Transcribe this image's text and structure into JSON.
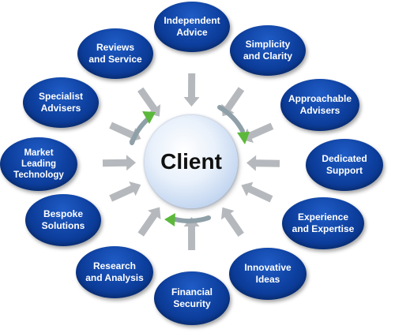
{
  "center": {
    "label": "Client"
  },
  "nodes": [
    {
      "id": "independent-advice",
      "label": "Independent\nAdvice"
    },
    {
      "id": "simplicity-and-clarity",
      "label": "Simplicity\nand Clarity"
    },
    {
      "id": "approachable-advisers",
      "label": "Approachable\nAdvisers"
    },
    {
      "id": "dedicated-support",
      "label": "Dedicated\nSupport"
    },
    {
      "id": "experience-and-expertise",
      "label": "Experience\nand Expertise"
    },
    {
      "id": "innovative-ideas",
      "label": "Innovative\nIdeas"
    },
    {
      "id": "financial-security",
      "label": "Financial\nSecurity"
    },
    {
      "id": "research-and-analysis",
      "label": "Research\nand Analysis"
    },
    {
      "id": "bespoke-solutions",
      "label": "Bespoke\nSolutions"
    },
    {
      "id": "market-leading-technology",
      "label": "Market\nLeading\nTechnology"
    },
    {
      "id": "specialist-advisers",
      "label": "Specialist\nAdvisers"
    },
    {
      "id": "reviews-and-service",
      "label": "Reviews\nand Service"
    }
  ],
  "colors": {
    "node_fill": "#0d3f9e",
    "node_text": "#ffffff",
    "center_fill": "#dfeaf8",
    "center_text": "#111111",
    "cycle_arrow": "#5cb83a",
    "spoke_arrow": "#b5b8bc"
  }
}
